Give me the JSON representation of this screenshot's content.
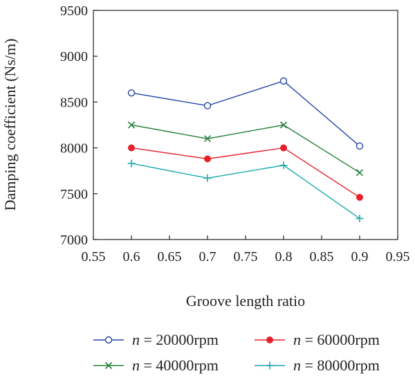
{
  "chart_data": {
    "type": "line",
    "xlabel": "Groove length ratio",
    "ylabel": "Damping coefficient (Ns/m)",
    "xlim": [
      0.55,
      0.95
    ],
    "ylim": [
      7000,
      9500
    ],
    "xticks": [
      "0.55",
      "0.6",
      "0.65",
      "0.7",
      "0.75",
      "0.8",
      "0.85",
      "0.9",
      "0.95"
    ],
    "yticks": [
      "7000",
      "7500",
      "8000",
      "8500",
      "9000",
      "9500"
    ],
    "grid": false,
    "legend_position": "bottom",
    "x": [
      0.6,
      0.7,
      0.8,
      0.9
    ],
    "series": [
      {
        "name": "n = 20000rpm",
        "legend_var": "n",
        "legend_rest": " = 20000rpm",
        "values": [
          8600,
          8460,
          8730,
          8020
        ],
        "color": "#2346a8",
        "marker": "circle-open"
      },
      {
        "name": "n = 40000rpm",
        "legend_var": "n",
        "legend_rest": " = 40000rpm",
        "values": [
          8250,
          8100,
          8250,
          7730
        ],
        "color": "#23823a",
        "marker": "x"
      },
      {
        "name": "n = 60000rpm",
        "legend_var": "n",
        "legend_rest": " = 60000rpm",
        "values": [
          8000,
          7880,
          8000,
          7460
        ],
        "color": "#e8202a",
        "marker": "circle-filled"
      },
      {
        "name": "n = 80000rpm",
        "legend_var": "n",
        "legend_rest": " = 80000rpm",
        "values": [
          7830,
          7670,
          7810,
          7230
        ],
        "color": "#19a9ad",
        "marker": "plus"
      }
    ]
  }
}
